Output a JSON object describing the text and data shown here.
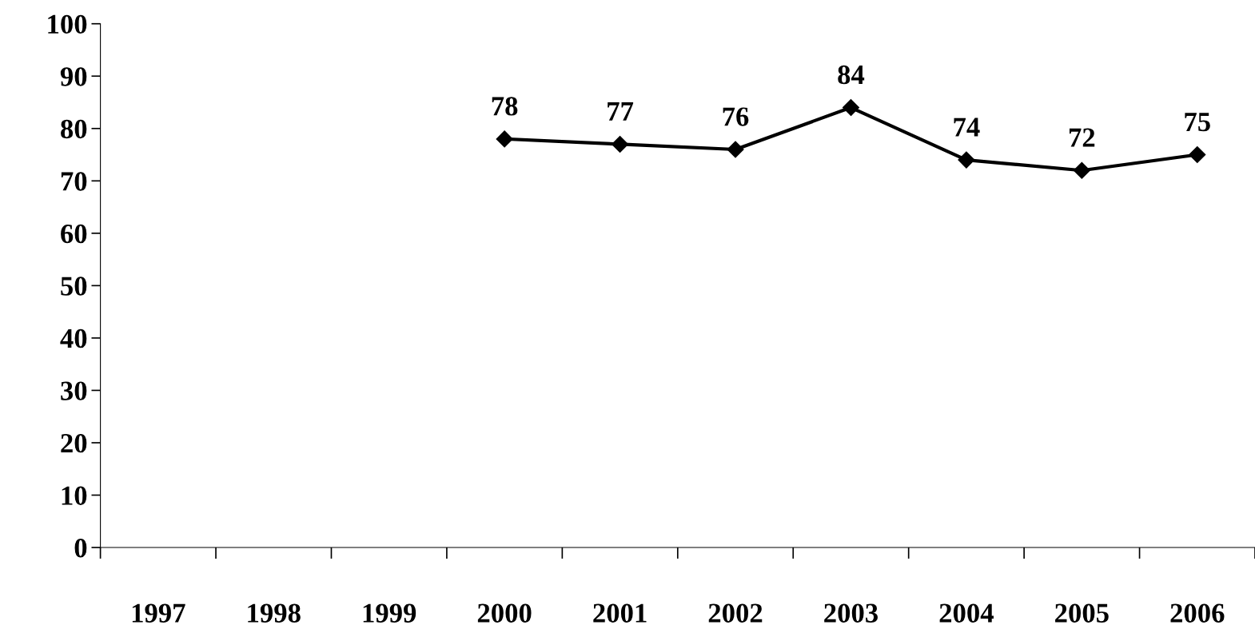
{
  "chart_data": {
    "type": "line",
    "categories": [
      "1997",
      "1998",
      "1999",
      "2000",
      "2001",
      "2002",
      "2003",
      "2004",
      "2005",
      "2006"
    ],
    "series": [
      {
        "color": "#000000",
        "values": [
          null,
          null,
          null,
          78,
          77,
          76,
          84,
          74,
          72,
          75
        ]
      }
    ],
    "ylim": [
      0,
      100
    ],
    "yticks": [
      0,
      10,
      20,
      30,
      40,
      50,
      60,
      70,
      80,
      90,
      100
    ],
    "marker": "diamond",
    "line_style": "solid",
    "data_labels": true,
    "grid": false,
    "legend": false
  }
}
